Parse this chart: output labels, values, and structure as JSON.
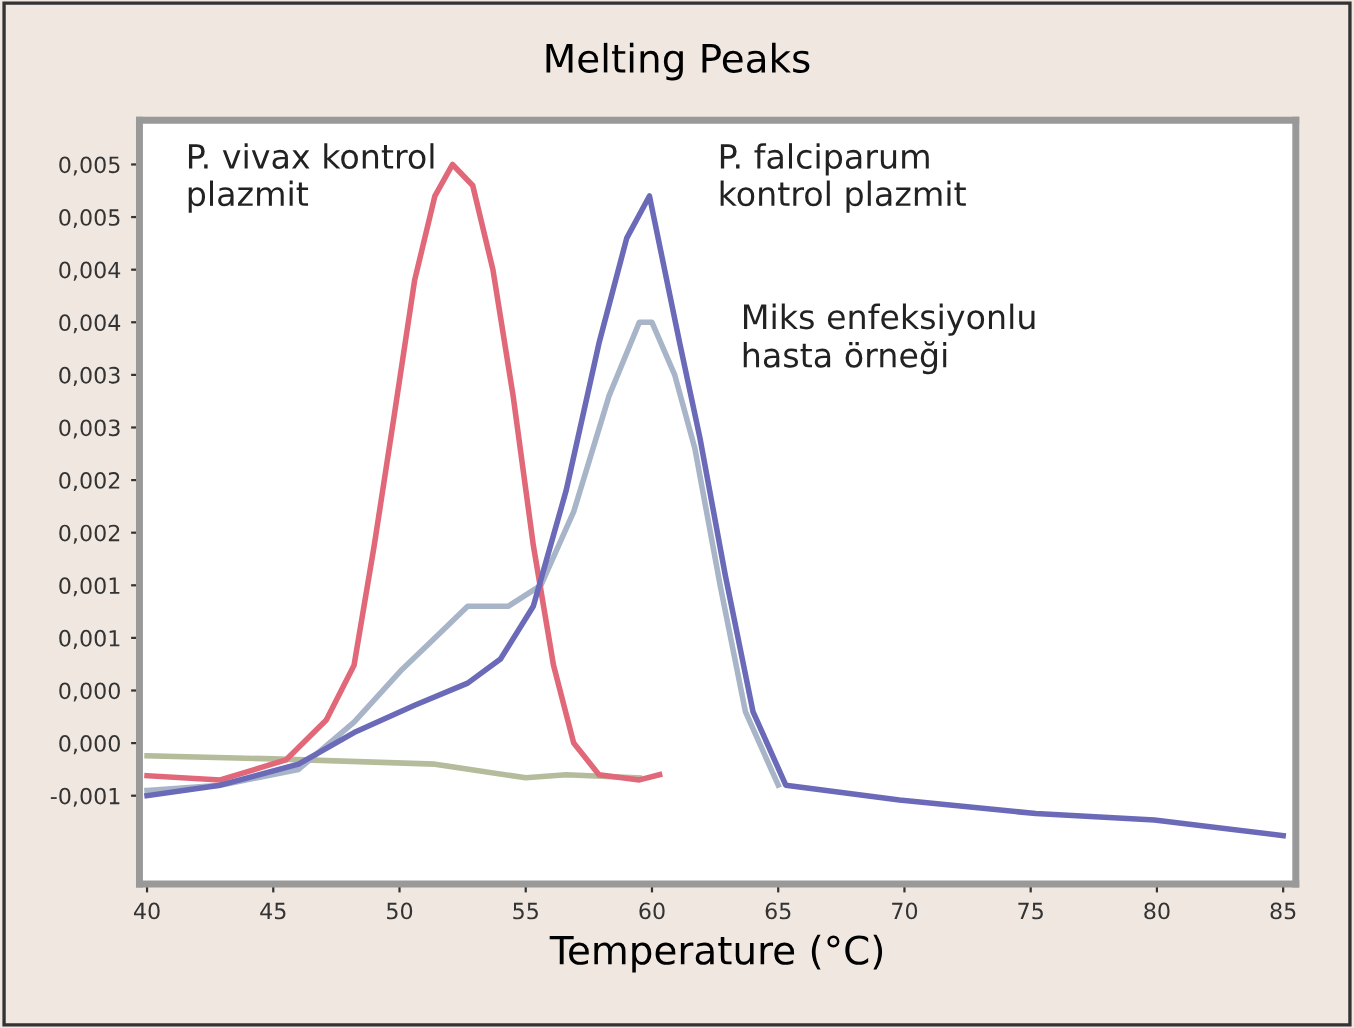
{
  "chart_data": {
    "type": "line",
    "title": "Melting Peaks",
    "xlabel": "Temperature (°C)",
    "xlim": [
      39.7,
      85.5
    ],
    "ylim": [
      -0.00134,
      0.00592
    ],
    "xticks": [
      40,
      45,
      50,
      55,
      60,
      65,
      70,
      75,
      80,
      85
    ],
    "yticks": [
      {
        "value": 0.0055,
        "label": "0,005"
      },
      {
        "value": 0.005,
        "label": "0,005"
      },
      {
        "value": 0.0045,
        "label": "0,004"
      },
      {
        "value": 0.004,
        "label": "0,004"
      },
      {
        "value": 0.0035,
        "label": "0,003"
      },
      {
        "value": 0.003,
        "label": "0,003"
      },
      {
        "value": 0.0025,
        "label": "0,002"
      },
      {
        "value": 0.002,
        "label": "0,002"
      },
      {
        "value": 0.0015,
        "label": "0,001"
      },
      {
        "value": 0.001,
        "label": "0,001"
      },
      {
        "value": 0.0005,
        "label": "0,000"
      },
      {
        "value": 0,
        "label": "0,000"
      },
      {
        "value": -0.0005,
        "label": "-0,001"
      }
    ],
    "grid": false,
    "marker": "none",
    "line_style": "solid",
    "series": [
      {
        "color": "#b4bc9c",
        "x": [
          40,
          45,
          51.4,
          55,
          56.6,
          59.5
        ],
        "values": [
          -0.00012,
          -0.00015,
          -0.0002,
          -0.00033,
          -0.0003,
          -0.00033
        ]
      },
      {
        "color": "#a8b4c8",
        "x": [
          40,
          42.9,
          46,
          48.2,
          50.1,
          51.4,
          52.7,
          54.3,
          55.6,
          56.9,
          58.3,
          59.5,
          60,
          60.9,
          61.7,
          62.7,
          63.7,
          65
        ],
        "values": [
          -0.00045,
          -0.0004,
          -0.00025,
          0.0002,
          0.0007,
          0.001,
          0.0013,
          0.0013,
          0.0015,
          0.0022,
          0.0033,
          0.004,
          0.004,
          0.0035,
          0.0028,
          0.0015,
          0.0003,
          -0.0004
        ]
      },
      {
        "color": "#e06878",
        "x": [
          40,
          42.9,
          45.5,
          47.1,
          48.2,
          49,
          49.8,
          50.6,
          51.4,
          52.1,
          52.9,
          53.7,
          54.5,
          55.3,
          56.1,
          56.9,
          57.9,
          59.5,
          60.3
        ],
        "values": [
          -0.00031,
          -0.00035,
          -0.00016,
          0.00022,
          0.00074,
          0.00188,
          0.00313,
          0.0044,
          0.0052,
          0.0055,
          0.0053,
          0.0045,
          0.0033,
          0.00188,
          0.00074,
          0.0,
          -0.0003,
          -0.00035,
          -0.0003
        ]
      },
      {
        "color": "#6a6ab8",
        "x": [
          40,
          42.9,
          46,
          48.2,
          50.6,
          52.7,
          54,
          55.3,
          56.6,
          57.9,
          59,
          59.9,
          61.1,
          61.9,
          62.9,
          64,
          65.3,
          69.8,
          75.2,
          79.9,
          85
        ],
        "values": [
          -0.0005,
          -0.0004,
          -0.0002,
          0.0001,
          0.00036,
          0.00057,
          0.0008,
          0.0013,
          0.0024,
          0.0038,
          0.0048,
          0.0052,
          0.0038,
          0.0029,
          0.0016,
          0.0003,
          -0.0004,
          -0.00054,
          -0.00067,
          -0.00073,
          -0.00088
        ]
      }
    ],
    "annotations": [
      "P. vivax kontrol\nplazmit",
      "P. falciparum\nkontrol plazmit",
      "Miks enfeksiyonlu\nhasta örneği"
    ]
  }
}
